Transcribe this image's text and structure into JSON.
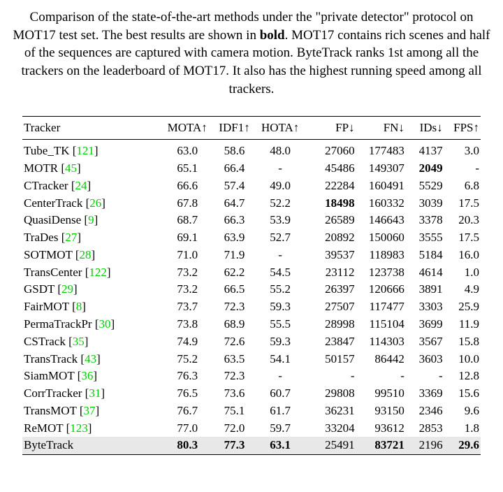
{
  "caption_pre": "Comparison of the state-of-the-art methods under the \"private detector\" protocol on MOT17 test set. The best results are shown in ",
  "caption_bold": "bold",
  "caption_post": ". MOT17 contains rich scenes and half of the sequences are captured with camera motion. ByteTrack ranks 1st among all the trackers on the leaderboard of MOT17. It also has the highest running speed among all trackers.",
  "columns": {
    "tracker": "Tracker",
    "mota": "MOTA↑",
    "idf1": "IDF1↑",
    "hota": "HOTA↑",
    "fp": "FP↓",
    "fn": "FN↓",
    "ids": "IDs↓",
    "fps": "FPS↑"
  },
  "rows": [
    {
      "name": "Tube_TK",
      "ref": "121",
      "mota": "63.0",
      "idf1": "58.6",
      "hota": "48.0",
      "fp": "27060",
      "fn": "177483",
      "ids": "4137",
      "fps": "3.0",
      "bold": [],
      "highlight": false
    },
    {
      "name": "MOTR",
      "ref": "45",
      "mota": "65.1",
      "idf1": "66.4",
      "hota": "-",
      "fp": "45486",
      "fn": "149307",
      "ids": "2049",
      "fps": "-",
      "bold": [
        "ids"
      ],
      "highlight": false
    },
    {
      "name": "CTracker",
      "ref": "24",
      "mota": "66.6",
      "idf1": "57.4",
      "hota": "49.0",
      "fp": "22284",
      "fn": "160491",
      "ids": "5529",
      "fps": "6.8",
      "bold": [],
      "highlight": false
    },
    {
      "name": "CenterTrack",
      "ref": "26",
      "mota": "67.8",
      "idf1": "64.7",
      "hota": "52.2",
      "fp": "18498",
      "fn": "160332",
      "ids": "3039",
      "fps": "17.5",
      "bold": [
        "fp"
      ],
      "highlight": false
    },
    {
      "name": "QuasiDense",
      "ref": "9",
      "mota": "68.7",
      "idf1": "66.3",
      "hota": "53.9",
      "fp": "26589",
      "fn": "146643",
      "ids": "3378",
      "fps": "20.3",
      "bold": [],
      "highlight": false
    },
    {
      "name": "TraDes",
      "ref": "27",
      "mota": "69.1",
      "idf1": "63.9",
      "hota": "52.7",
      "fp": "20892",
      "fn": "150060",
      "ids": "3555",
      "fps": "17.5",
      "bold": [],
      "highlight": false
    },
    {
      "name": "SOTMOT",
      "ref": "28",
      "mota": "71.0",
      "idf1": "71.9",
      "hota": "-",
      "fp": "39537",
      "fn": "118983",
      "ids": "5184",
      "fps": "16.0",
      "bold": [],
      "highlight": false
    },
    {
      "name": "TransCenter",
      "ref": "122",
      "mota": "73.2",
      "idf1": "62.2",
      "hota": "54.5",
      "fp": "23112",
      "fn": "123738",
      "ids": "4614",
      "fps": "1.0",
      "bold": [],
      "highlight": false
    },
    {
      "name": "GSDT",
      "ref": "29",
      "mota": "73.2",
      "idf1": "66.5",
      "hota": "55.2",
      "fp": "26397",
      "fn": "120666",
      "ids": "3891",
      "fps": "4.9",
      "bold": [],
      "highlight": false
    },
    {
      "name": "FairMOT",
      "ref": "8",
      "mota": "73.7",
      "idf1": "72.3",
      "hota": "59.3",
      "fp": "27507",
      "fn": "117477",
      "ids": "3303",
      "fps": "25.9",
      "bold": [],
      "highlight": false
    },
    {
      "name": "PermaTrackPr",
      "ref": "30",
      "mota": "73.8",
      "idf1": "68.9",
      "hota": "55.5",
      "fp": "28998",
      "fn": "115104",
      "ids": "3699",
      "fps": "11.9",
      "bold": [],
      "highlight": false
    },
    {
      "name": "CSTrack",
      "ref": "35",
      "mota": "74.9",
      "idf1": "72.6",
      "hota": "59.3",
      "fp": "23847",
      "fn": "114303",
      "ids": "3567",
      "fps": "15.8",
      "bold": [],
      "highlight": false
    },
    {
      "name": "TransTrack",
      "ref": "43",
      "mota": "75.2",
      "idf1": "63.5",
      "hota": "54.1",
      "fp": "50157",
      "fn": "86442",
      "ids": "3603",
      "fps": "10.0",
      "bold": [],
      "highlight": false
    },
    {
      "name": "SiamMOT",
      "ref": "36",
      "mota": "76.3",
      "idf1": "72.3",
      "hota": "-",
      "fp": "-",
      "fn": "-",
      "ids": "-",
      "fps": "12.8",
      "bold": [],
      "highlight": false
    },
    {
      "name": "CorrTracker",
      "ref": "31",
      "mota": "76.5",
      "idf1": "73.6",
      "hota": "60.7",
      "fp": "29808",
      "fn": "99510",
      "ids": "3369",
      "fps": "15.6",
      "bold": [],
      "highlight": false
    },
    {
      "name": "TransMOT",
      "ref": "37",
      "mota": "76.7",
      "idf1": "75.1",
      "hota": "61.7",
      "fp": "36231",
      "fn": "93150",
      "ids": "2346",
      "fps": "9.6",
      "bold": [],
      "highlight": false
    },
    {
      "name": "ReMOT",
      "ref": "123",
      "mota": "77.0",
      "idf1": "72.0",
      "hota": "59.7",
      "fp": "33204",
      "fn": "93612",
      "ids": "2853",
      "fps": "1.8",
      "bold": [],
      "highlight": false
    },
    {
      "name": "ByteTrack",
      "ref": "",
      "mota": "80.3",
      "idf1": "77.3",
      "hota": "63.1",
      "fp": "25491",
      "fn": "83721",
      "ids": "2196",
      "fps": "29.6",
      "bold": [
        "mota",
        "idf1",
        "hota",
        "fn",
        "fps"
      ],
      "highlight": true
    }
  ]
}
